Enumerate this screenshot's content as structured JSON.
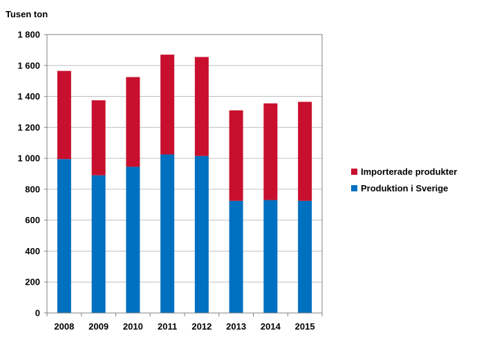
{
  "chart_data": {
    "type": "bar",
    "stacked": true,
    "unit_label": "Tusen ton",
    "categories": [
      "2008",
      "2009",
      "2010",
      "2011",
      "2012",
      "2013",
      "2014",
      "2015"
    ],
    "series": [
      {
        "name": "Produktion i Sverige",
        "color": "#0070C0",
        "values": [
          995,
          890,
          945,
          1025,
          1015,
          725,
          730,
          725
        ]
      },
      {
        "name": "Importerade produkter",
        "color": "#C8102E",
        "values": [
          570,
          485,
          580,
          645,
          640,
          585,
          625,
          640
        ]
      }
    ],
    "ylim": [
      0,
      1800
    ],
    "y_ticks": [
      "0",
      "200",
      "400",
      "600",
      "800",
      "1 000",
      "1 200",
      "1 400",
      "1 600",
      "1 800"
    ],
    "grid": true,
    "legend_position": "right",
    "legend_order": [
      "Importerade produkter",
      "Produktion i Sverige"
    ]
  }
}
